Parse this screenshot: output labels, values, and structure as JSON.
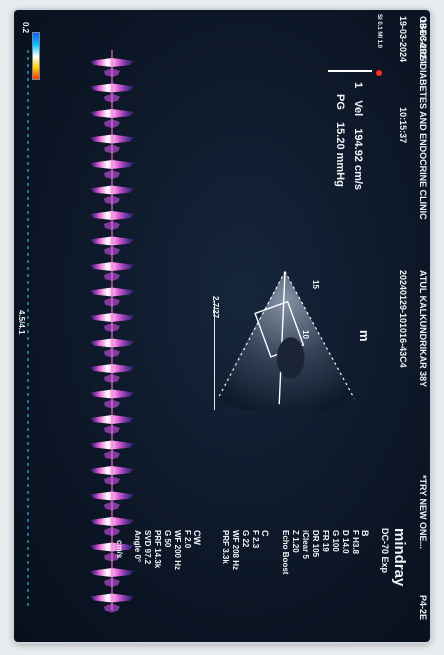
{
  "header": {
    "clinic": "OBECARE DIABETES AND ENDOCRINE CLINIC",
    "patient": "ATUL KALKUNDRIKAR 38Y",
    "mode_title": "*TRY NEW ONE...",
    "probe": "P4-2E",
    "date": "19-03-2024",
    "time": "10:15:37",
    "study_id": "20240129-101016-43C4",
    "rec_label": "SI 0.1 MI 1.0"
  },
  "brand": {
    "logo": "mindray",
    "model": "DC-70 Exp"
  },
  "params_b": {
    "mode": "B",
    "items": [
      "F H3.8",
      "D 14.0",
      "G 100",
      "FR 19",
      "DR 105",
      "iClear 5",
      "Z 1.20",
      "Echo Boost"
    ]
  },
  "params_c": {
    "mode": "C",
    "items": [
      "F 2.3",
      "G 22",
      "WF 208 Hz",
      "PRF 3.3k"
    ]
  },
  "params_cw": {
    "mode": "CW",
    "items": [
      "F 2.0",
      "WF 200 Hz",
      "G 50",
      "PRF 14.3k",
      "SVD 97.2",
      "Angle 0°"
    ]
  },
  "measure": {
    "index": "1",
    "vel_label": "Vel",
    "vel_value": "194.92 cm/s",
    "pg_label": "PG",
    "pg_value": "15.20 mmHg"
  },
  "scale": {
    "top_mark": "0.2",
    "unit_top": "cm/s",
    "marker_m": "m",
    "depth_label": "2.7/27",
    "tick_15": "15",
    "tick_10": "10",
    "time_marker": "4.5/4.1"
  },
  "colors": {
    "screen_bg": "#0c1626",
    "doppler_core": "#ffffff",
    "doppler_mid": "#e15bd2",
    "doppler_edge": "#7c3cff",
    "accent_red": "#ff2a2a",
    "baseline": "#3fd2ff"
  }
}
